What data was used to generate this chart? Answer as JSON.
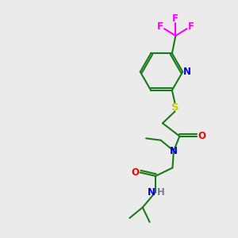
{
  "bg_color": "#ebebeb",
  "atom_colors": {
    "C": "#1a7a1a",
    "N": "#0000ee",
    "O": "#ff0000",
    "S": "#cccc00",
    "F": "#ff00ff",
    "H": "#7a7a99"
  },
  "bond_color": "#1a7a1a",
  "figsize": [
    3.0,
    3.0
  ],
  "dpi": 100
}
